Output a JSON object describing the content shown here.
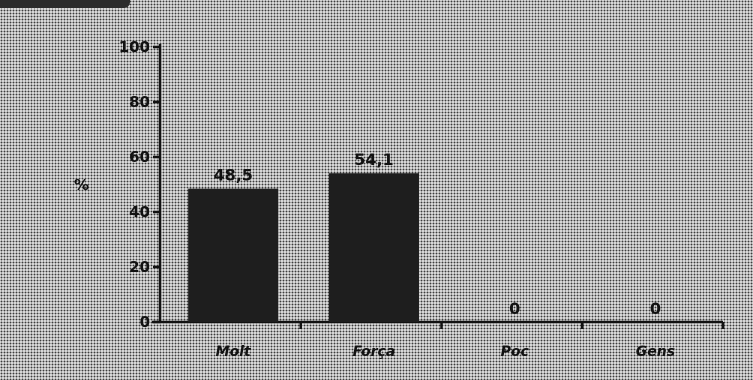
{
  "chart_data": {
    "type": "bar",
    "categories": [
      "Molt",
      "Força",
      "Poc",
      "Gens"
    ],
    "values": [
      48.5,
      54.1,
      0,
      0
    ],
    "value_labels": [
      "48,5",
      "54,1",
      "0",
      "0"
    ],
    "ylabel": "%",
    "ylim": [
      0,
      100
    ],
    "yticks": [
      0,
      20,
      40,
      60,
      80,
      100
    ],
    "grid": false,
    "colors": {
      "bar": "#1e1e1e",
      "axis": "#111111"
    }
  }
}
